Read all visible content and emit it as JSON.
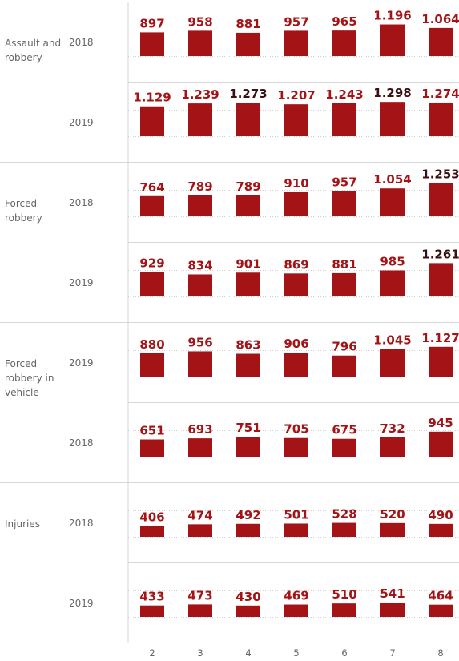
{
  "chart_data": {
    "type": "bar",
    "x_ticks": [
      "2",
      "3",
      "4",
      "5",
      "6",
      "7",
      "8"
    ],
    "colors": {
      "bar": "#a41417",
      "label": "#a41417",
      "label_emphasis": "#3a1012",
      "grid": "#cfcfcf",
      "divider": "#d6d6d6"
    },
    "groups": [
      {
        "category": "Assault and robbery",
        "rows": [
          {
            "year": "2018",
            "values": [
              897,
              958,
              881,
              957,
              965,
              1196,
              1064
            ],
            "labels": [
              "897",
              "958",
              "881",
              "957",
              "965",
              "1.196",
              "1.064"
            ]
          },
          {
            "year": "2019",
            "values": [
              1129,
              1239,
              1273,
              1207,
              1243,
              1298,
              1274
            ],
            "labels": [
              "1.129",
              "1.239",
              "1.273",
              "1.207",
              "1.243",
              "1.298",
              "1.274"
            ]
          }
        ]
      },
      {
        "category": "Forced robbery",
        "rows": [
          {
            "year": "2018",
            "values": [
              764,
              789,
              789,
              910,
              957,
              1054,
              1253
            ],
            "labels": [
              "764",
              "789",
              "789",
              "910",
              "957",
              "1.054",
              "1.253"
            ]
          },
          {
            "year": "2019",
            "values": [
              929,
              834,
              901,
              869,
              881,
              985,
              1261
            ],
            "labels": [
              "929",
              "834",
              "901",
              "869",
              "881",
              "985",
              "1.261"
            ]
          }
        ]
      },
      {
        "category": "Forced robbery in vehicle",
        "rows": [
          {
            "year": "2019",
            "values": [
              880,
              956,
              863,
              906,
              796,
              1045,
              1127
            ],
            "labels": [
              "880",
              "956",
              "863",
              "906",
              "796",
              "1.045",
              "1.127"
            ]
          },
          {
            "year": "2018",
            "values": [
              651,
              693,
              751,
              705,
              675,
              732,
              945
            ],
            "labels": [
              "651",
              "693",
              "751",
              "705",
              "675",
              "732",
              "945"
            ]
          }
        ]
      },
      {
        "category": "Injuries",
        "rows": [
          {
            "year": "2018",
            "values": [
              406,
              474,
              492,
              501,
              528,
              520,
              490
            ],
            "labels": [
              "406",
              "474",
              "492",
              "501",
              "528",
              "520",
              "490"
            ]
          },
          {
            "year": "2019",
            "values": [
              433,
              473,
              430,
              469,
              510,
              541,
              464
            ],
            "labels": [
              "433",
              "473",
              "430",
              "469",
              "510",
              "541",
              "464"
            ]
          }
        ]
      }
    ],
    "emphasized_labels": [
      "1.273",
      "1.298",
      "1.253",
      "1.261"
    ]
  }
}
